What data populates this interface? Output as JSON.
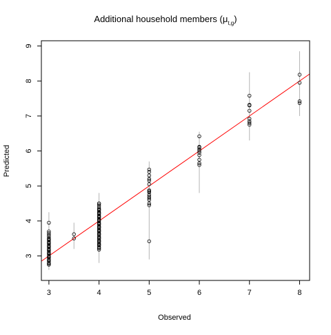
{
  "chart_data": {
    "type": "scatter",
    "title": "Additional household members (",
    "title_symbol": "μ",
    "title_subscript": "t,g",
    "title_close": ")",
    "xlabel": "Observed",
    "ylabel": "Predicted",
    "xlim": [
      2.85,
      8.2
    ],
    "ylim": [
      2.3,
      9.15
    ],
    "xticks": [
      3,
      4,
      5,
      6,
      7,
      8
    ],
    "yticks": [
      3,
      4,
      5,
      6,
      7,
      8,
      9
    ],
    "grid": false,
    "legend": "none",
    "point_color": "#000000",
    "errorbar_color": "#b4b4b4",
    "reference_line": {
      "slope": 1,
      "intercept": 0,
      "color": "#ff0000"
    },
    "error_bars": [
      {
        "x": 3,
        "low": 2.6,
        "high": 4.25
      },
      {
        "x": 3.5,
        "low": 3.2,
        "high": 3.95
      },
      {
        "x": 4,
        "low": 2.8,
        "high": 4.8
      },
      {
        "x": 5,
        "low": 2.9,
        "high": 5.7
      },
      {
        "x": 6,
        "low": 4.8,
        "high": 6.55
      },
      {
        "x": 7,
        "low": 6.3,
        "high": 8.25
      },
      {
        "x": 8,
        "low": 7.0,
        "high": 8.85
      }
    ],
    "series": [
      {
        "x": [
          3,
          3,
          3,
          3,
          3,
          3,
          3,
          3,
          3,
          3,
          3,
          3,
          3,
          3,
          3,
          3,
          3,
          3,
          3,
          3,
          3,
          3,
          3,
          3,
          3,
          3,
          3,
          3,
          3,
          3.5,
          3.5,
          4,
          4,
          4,
          4,
          4,
          4,
          4,
          4,
          4,
          4,
          4,
          4,
          4,
          4,
          4,
          4,
          4,
          4,
          4,
          4,
          4,
          4,
          4,
          4,
          4,
          4,
          4,
          4,
          4,
          4,
          4,
          4,
          4,
          4,
          4,
          4,
          4,
          4,
          4,
          4,
          5,
          5,
          5,
          5,
          5,
          5,
          5,
          5,
          5,
          5,
          5,
          5,
          5,
          5,
          5,
          5,
          6,
          6,
          6,
          6,
          6,
          6,
          6,
          6,
          6,
          6,
          7,
          7,
          7,
          7,
          7,
          7,
          7,
          7,
          8,
          8,
          8,
          8
        ],
        "y": [
          2.75,
          2.8,
          2.85,
          2.9,
          2.95,
          3.0,
          3.05,
          3.1,
          3.15,
          3.2,
          3.25,
          3.3,
          3.35,
          3.4,
          3.45,
          3.5,
          3.55,
          3.6,
          3.65,
          3.7,
          2.78,
          2.88,
          2.98,
          3.08,
          3.18,
          3.28,
          3.38,
          3.48,
          3.95,
          3.5,
          3.62,
          3.18,
          3.25,
          3.3,
          3.35,
          3.4,
          3.45,
          3.5,
          3.55,
          3.6,
          3.65,
          3.7,
          3.75,
          3.8,
          3.85,
          3.9,
          3.95,
          4.0,
          4.05,
          4.1,
          4.15,
          4.2,
          4.25,
          4.3,
          4.35,
          4.4,
          4.45,
          4.5,
          3.22,
          3.32,
          3.42,
          3.52,
          3.62,
          3.72,
          3.82,
          3.92,
          4.02,
          4.12,
          4.22,
          4.32,
          4.5,
          3.42,
          4.45,
          4.5,
          4.6,
          4.65,
          4.7,
          4.75,
          4.82,
          4.85,
          4.88,
          5.05,
          5.15,
          5.2,
          5.3,
          5.4,
          5.47,
          5.6,
          5.65,
          5.75,
          5.88,
          5.95,
          6.0,
          6.05,
          6.1,
          6.12,
          6.42,
          6.75,
          6.8,
          6.85,
          6.92,
          7.15,
          7.3,
          7.32,
          7.58,
          7.37,
          7.42,
          7.95,
          8.18
        ]
      }
    ]
  }
}
